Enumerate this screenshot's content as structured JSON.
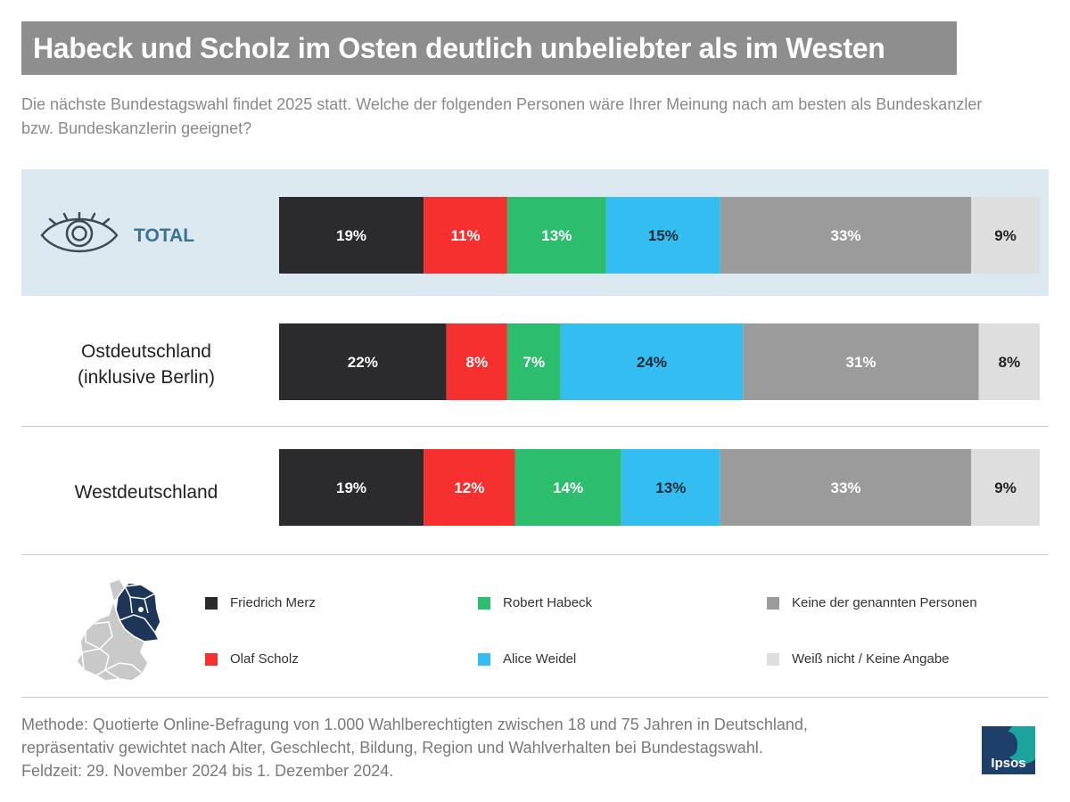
{
  "title": "Habeck und Scholz im Osten deutlich unbeliebter als im Westen",
  "subtitle": "Die nächste Bundestagswahl findet 2025 statt. Welche der folgenden Personen wäre Ihrer Meinung nach am besten als Bundeskanzler bzw. Bundeskanzlerin geeignet?",
  "rows": {
    "total": "TOTAL",
    "ost_line1": "Ostdeutschland",
    "ost_line2": "(inklusive Berlin)",
    "west": "Westdeutschland"
  },
  "legend": [
    {
      "label": "Friedrich Merz",
      "color": "#2b2b2d"
    },
    {
      "label": "Olaf Scholz",
      "color": "#f5302f"
    },
    {
      "label": "Robert Habeck",
      "color": "#2dbd6e"
    },
    {
      "label": "Alice Weidel",
      "color": "#33bdf0"
    },
    {
      "label": "Keine der genannten Personen",
      "color": "#9b9b9b"
    },
    {
      "label": "Weiß nicht / Keine Angabe",
      "color": "#dedede"
    }
  ],
  "chart_data": {
    "type": "bar",
    "stacked": true,
    "orientation": "horizontal",
    "categories": [
      "TOTAL",
      "Ostdeutschland (inklusive Berlin)",
      "Westdeutschland"
    ],
    "series": [
      {
        "name": "Friedrich Merz",
        "values": [
          19,
          22,
          19
        ],
        "color": "#2b2b2d",
        "label_color": "#ffffff"
      },
      {
        "name": "Olaf Scholz",
        "values": [
          11,
          8,
          12
        ],
        "color": "#f5302f",
        "label_color": "#ffffff"
      },
      {
        "name": "Robert Habeck",
        "values": [
          13,
          7,
          14
        ],
        "color": "#2dbd6e",
        "label_color": "#ffffff"
      },
      {
        "name": "Alice Weidel",
        "values": [
          15,
          24,
          13
        ],
        "color": "#33bdf0",
        "label_color": "#1f2a33"
      },
      {
        "name": "Keine der genannten Personen",
        "values": [
          33,
          31,
          33
        ],
        "color": "#9b9b9b",
        "label_color": "#ffffff"
      },
      {
        "name": "Weiß nicht / Keine Angabe",
        "values": [
          9,
          8,
          9
        ],
        "color": "#dedede",
        "label_color": "#222222"
      }
    ],
    "value_suffix": "%",
    "xlim": [
      0,
      100
    ]
  },
  "method": {
    "line1": "Methode: Quotierte Online-Befragung von 1.000 Wahlberechtigten zwischen 18 und 75 Jahren in Deutschland,",
    "line2": "repräsentativ gewichtet nach Alter, Geschlecht, Bildung, Region und Wahlverhalten bei Bundestagswahl.",
    "line3": "Feldzeit: 29. November 2024 bis 1. Dezember 2024."
  },
  "logo_text": "Ipsos",
  "icons": {
    "eye": "eye-icon",
    "map": "germany-map-icon"
  }
}
